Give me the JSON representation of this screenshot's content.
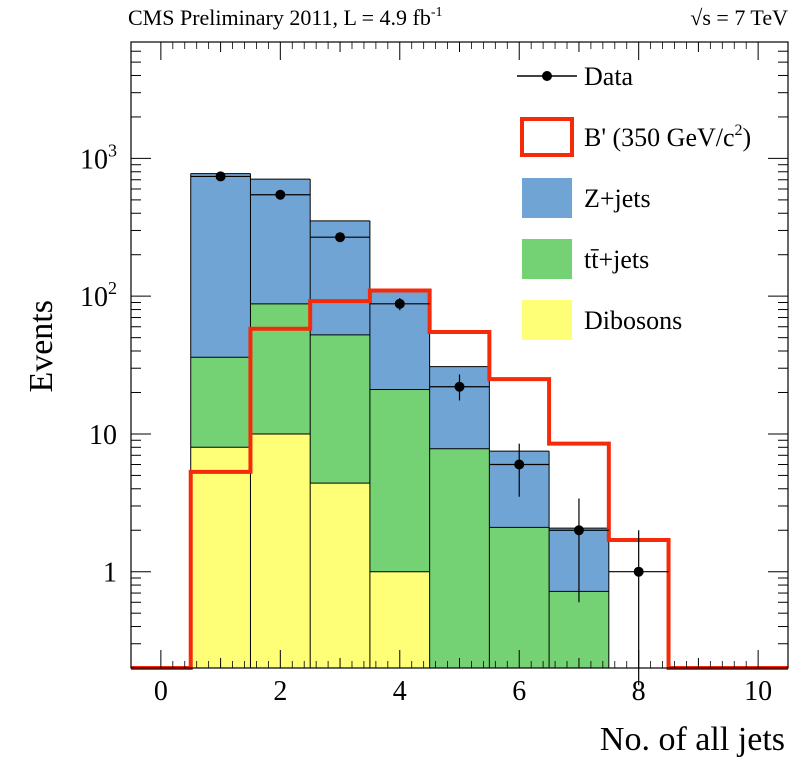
{
  "header": {
    "left_text": "CMS Preliminary 2011, L = 4.9 fb",
    "left_superscript": "-1",
    "right_sqrt": "√s",
    "right_text": " = 7 TeV"
  },
  "chart_data": {
    "type": "bar",
    "subtype": "stacked-histogram",
    "xlabel": "No. of all jets",
    "ylabel": "Events",
    "xlim": [
      -0.5,
      10.5
    ],
    "ylim": [
      0.2,
      7000
    ],
    "yscale": "log",
    "x_ticks": [
      "0",
      "2",
      "4",
      "6",
      "8",
      "10"
    ],
    "y_ticks": [
      {
        "value": 1,
        "base": "1",
        "exp": ""
      },
      {
        "value": 10,
        "base": "10",
        "exp": ""
      },
      {
        "value": 100,
        "base": "10",
        "exp": "2"
      },
      {
        "value": 1000,
        "base": "10",
        "exp": "3"
      }
    ],
    "bins": [
      0,
      1,
      2,
      3,
      4,
      5,
      6,
      7,
      8,
      9,
      10
    ],
    "stack": [
      {
        "name": "Dibosons",
        "color": "#ffff77",
        "values": [
          0,
          8,
          10,
          4.4,
          1.0,
          0,
          0,
          0,
          0,
          0,
          0
        ]
      },
      {
        "name": "tt̄+jets",
        "color": "#74d174",
        "values": [
          0,
          28,
          78,
          48,
          20,
          7.8,
          2.1,
          0.72,
          0,
          0,
          0
        ]
      },
      {
        "name": "Z+jets",
        "color": "#70a4d4",
        "values": [
          0,
          740,
          620,
          300,
          90,
          23,
          5.4,
          1.35,
          0,
          0,
          0
        ]
      }
    ],
    "signal": {
      "name": "B' (350 GeV/c²)",
      "label_main": "B' (350 GeV/c",
      "label_sup": "2",
      "label_end": ")",
      "color": "#f52a0a",
      "values": [
        0,
        5.3,
        58,
        92,
        110,
        55,
        25,
        8.5,
        1.7,
        0,
        0
      ]
    },
    "data": {
      "name": "Data",
      "values": [
        null,
        740,
        545,
        268,
        88,
        22,
        6,
        2,
        1,
        null,
        null
      ],
      "err_low": [
        null,
        27,
        23,
        16,
        9,
        4.5,
        2.5,
        1.4,
        0.9,
        null,
        null
      ],
      "err_high": [
        null,
        27,
        23,
        16,
        9,
        5,
        2.5,
        1.4,
        1.0,
        null,
        null
      ]
    },
    "legend": {
      "position": "top-right",
      "entries": [
        "Data",
        "B' (350 GeV/c²)",
        "Z+jets",
        "tt̄+jets",
        "Dibosons"
      ]
    }
  }
}
